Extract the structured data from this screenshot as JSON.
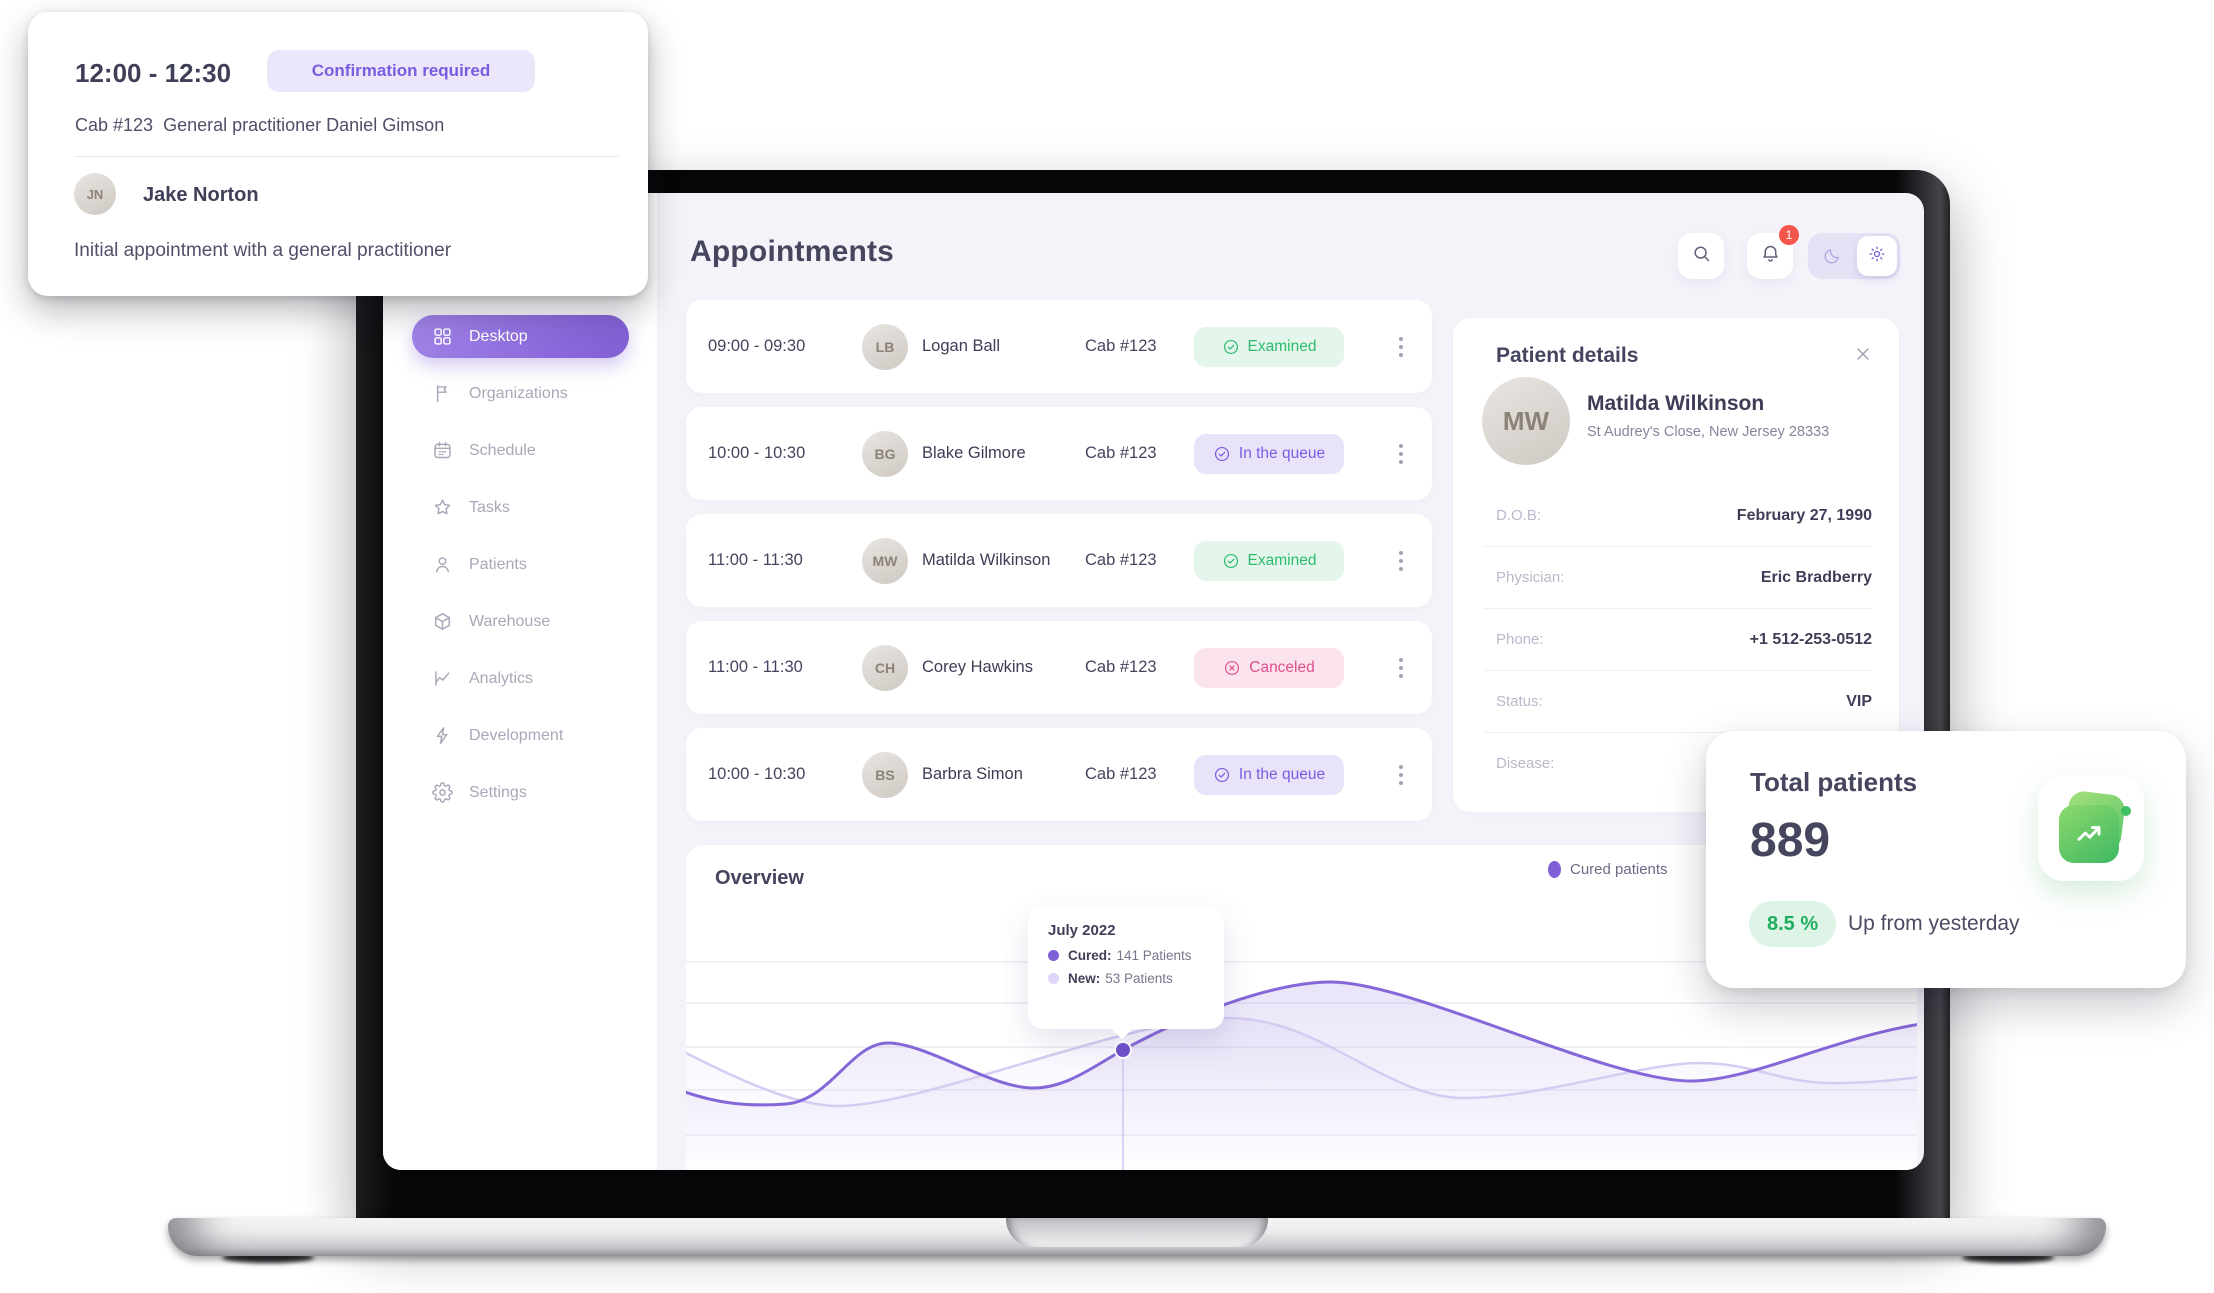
{
  "appointment_card": {
    "time_range": "12:00 - 12:30",
    "badge": "Confirmation required",
    "cab": "Cab #123",
    "practitioner": "General practitioner Daniel Gimson",
    "patient": "Jake Norton",
    "description": "Initial appointment with a general practitioner"
  },
  "sidebar": {
    "items": [
      {
        "label": "Desktop",
        "icon": "grid-icon",
        "active": true
      },
      {
        "label": "Organizations",
        "icon": "flag-icon"
      },
      {
        "label": "Schedule",
        "icon": "calendar-icon"
      },
      {
        "label": "Tasks",
        "icon": "star-icon"
      },
      {
        "label": "Patients",
        "icon": "user-icon"
      },
      {
        "label": "Warehouse",
        "icon": "box-icon"
      },
      {
        "label": "Analytics",
        "icon": "chart-icon"
      },
      {
        "label": "Development",
        "icon": "bolt-icon"
      },
      {
        "label": "Settings",
        "icon": "gear-icon"
      }
    ]
  },
  "header": {
    "title": "Appointments",
    "notification_count": "1"
  },
  "appointments": [
    {
      "time": "09:00 - 09:30",
      "name": "Logan Ball",
      "cab": "Cab #123",
      "status": "Examined",
      "status_type": "examined"
    },
    {
      "time": "10:00 - 10:30",
      "name": "Blake Gilmore",
      "cab": "Cab #123",
      "status": "In the queue",
      "status_type": "queue"
    },
    {
      "time": "11:00 - 11:30",
      "name": "Matilda Wilkinson",
      "cab": "Cab #123",
      "status": "Examined",
      "status_type": "examined"
    },
    {
      "time": "11:00 - 11:30",
      "name": "Corey Hawkins",
      "cab": "Cab #123",
      "status": "Canceled",
      "status_type": "canceled"
    },
    {
      "time": "10:00 - 10:30",
      "name": "Barbra Simon",
      "cab": "Cab #123",
      "status": "In the queue",
      "status_type": "queue"
    }
  ],
  "patient_details": {
    "title": "Patient details",
    "name": "Matilda Wilkinson",
    "address": "St Audrey's Close, New Jersey 28333",
    "fields": [
      {
        "label": "D.O.B:",
        "value": "February 27, 1990"
      },
      {
        "label": "Physician:",
        "value": "Eric Bradberry"
      },
      {
        "label": "Phone:",
        "value": "+1 512-253-0512"
      },
      {
        "label": "Status:",
        "value": "VIP"
      },
      {
        "label": "Disease:",
        "value": ""
      }
    ]
  },
  "overview": {
    "title": "Overview",
    "legend": [
      {
        "label": "Cured patients",
        "color": "#7e5fd6"
      }
    ],
    "tooltip": {
      "title": "July 2022",
      "rows": [
        {
          "label": "Cured:",
          "value": "141 Patients",
          "color": "#7e5fd6"
        },
        {
          "label": "New:",
          "value": "53 Patients",
          "color": "#ded5f7"
        }
      ]
    }
  },
  "chart_data": {
    "type": "area",
    "title": "Overview",
    "series": [
      {
        "name": "Cured patients",
        "color": "#8568d8"
      },
      {
        "name": "New patients",
        "color": "#d5ccf2"
      }
    ],
    "highlighted_point": {
      "x": "July 2022",
      "values": {
        "Cured": 141,
        "New": 53
      },
      "unit": "Patients"
    },
    "axes_labeled": false,
    "grid": "horizontal"
  },
  "total_patients": {
    "title": "Total patients",
    "value": "889",
    "delta": "8.5 %",
    "delta_label": "Up from yesterday"
  },
  "colors": {
    "accent_purple": "#8a67da",
    "examined_green": "#2dbb6e",
    "queue_purple": "#7a5ce0",
    "canceled_pink": "#de4f8d",
    "notification_red": "#f4564c",
    "success_green": "#1fae5e"
  }
}
